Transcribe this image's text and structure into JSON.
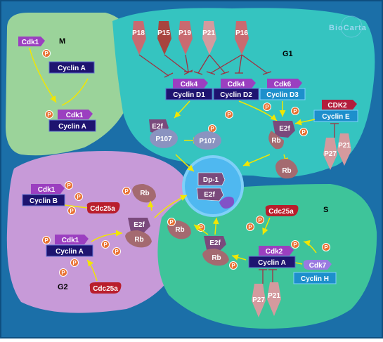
{
  "logo": "BioCarta",
  "phases": {
    "g1": "G1",
    "s": "S",
    "g2": "G2",
    "m": "M"
  },
  "inhibitors": {
    "p18": "P18",
    "p15": "P15",
    "p19": "P19",
    "p21_top": "P21",
    "p16": "P16",
    "p27_g1": "P27",
    "p21_g1": "P21",
    "p27_s": "P27",
    "p21_s": "P21"
  },
  "kinases": {
    "cdk1_m": "Cdk1",
    "cdk1_m2": "Cdk1",
    "cdk4_a": "Cdk4",
    "cdk4_b": "Cdk4",
    "cdk6": "Cdk6",
    "cdk2_g1": "CDK2",
    "cdk1_g2a": "Cdk1",
    "cdk1_g2b": "Cdk1",
    "cdk2_s": "Cdk2",
    "cdk7": "Cdk7"
  },
  "cyclins": {
    "a_m": "Cyclin A",
    "a_m2": "Cyclin A",
    "d1": "Cyclin D1",
    "d2": "Cyclin D2",
    "d3": "Cyclin D3",
    "e": "Cyclin E",
    "b": "Cyclin B",
    "a_g2": "Cyclin A",
    "a_s": "Cyclin A",
    "h": "Cyclin H"
  },
  "phosphatases": {
    "cdc25a_g2": "Cdc25a",
    "cdc25a_g2b": "Cdc25a",
    "cdc25a_s": "Cdc25a"
  },
  "rb_labels": {
    "e2f": "E2f",
    "p107": "P107",
    "rb": "Rb",
    "dp1": "Dp-1"
  },
  "phospho": "P",
  "colors": {
    "background": "#1b6fa8",
    "g1": "#35c4c0",
    "s": "#3ec49a",
    "g2": "#c79ad8",
    "m": "#9bd39a",
    "center": "#4fb8f0",
    "kinase": "#9b3fc0",
    "cyclin_dark": "#1e1470",
    "cyclin_light": "#1d8fcc",
    "inhibitor": "#c96a70",
    "cdc25": "#b91e2c",
    "rb": "#a46a70",
    "phospho": "#e87030"
  }
}
